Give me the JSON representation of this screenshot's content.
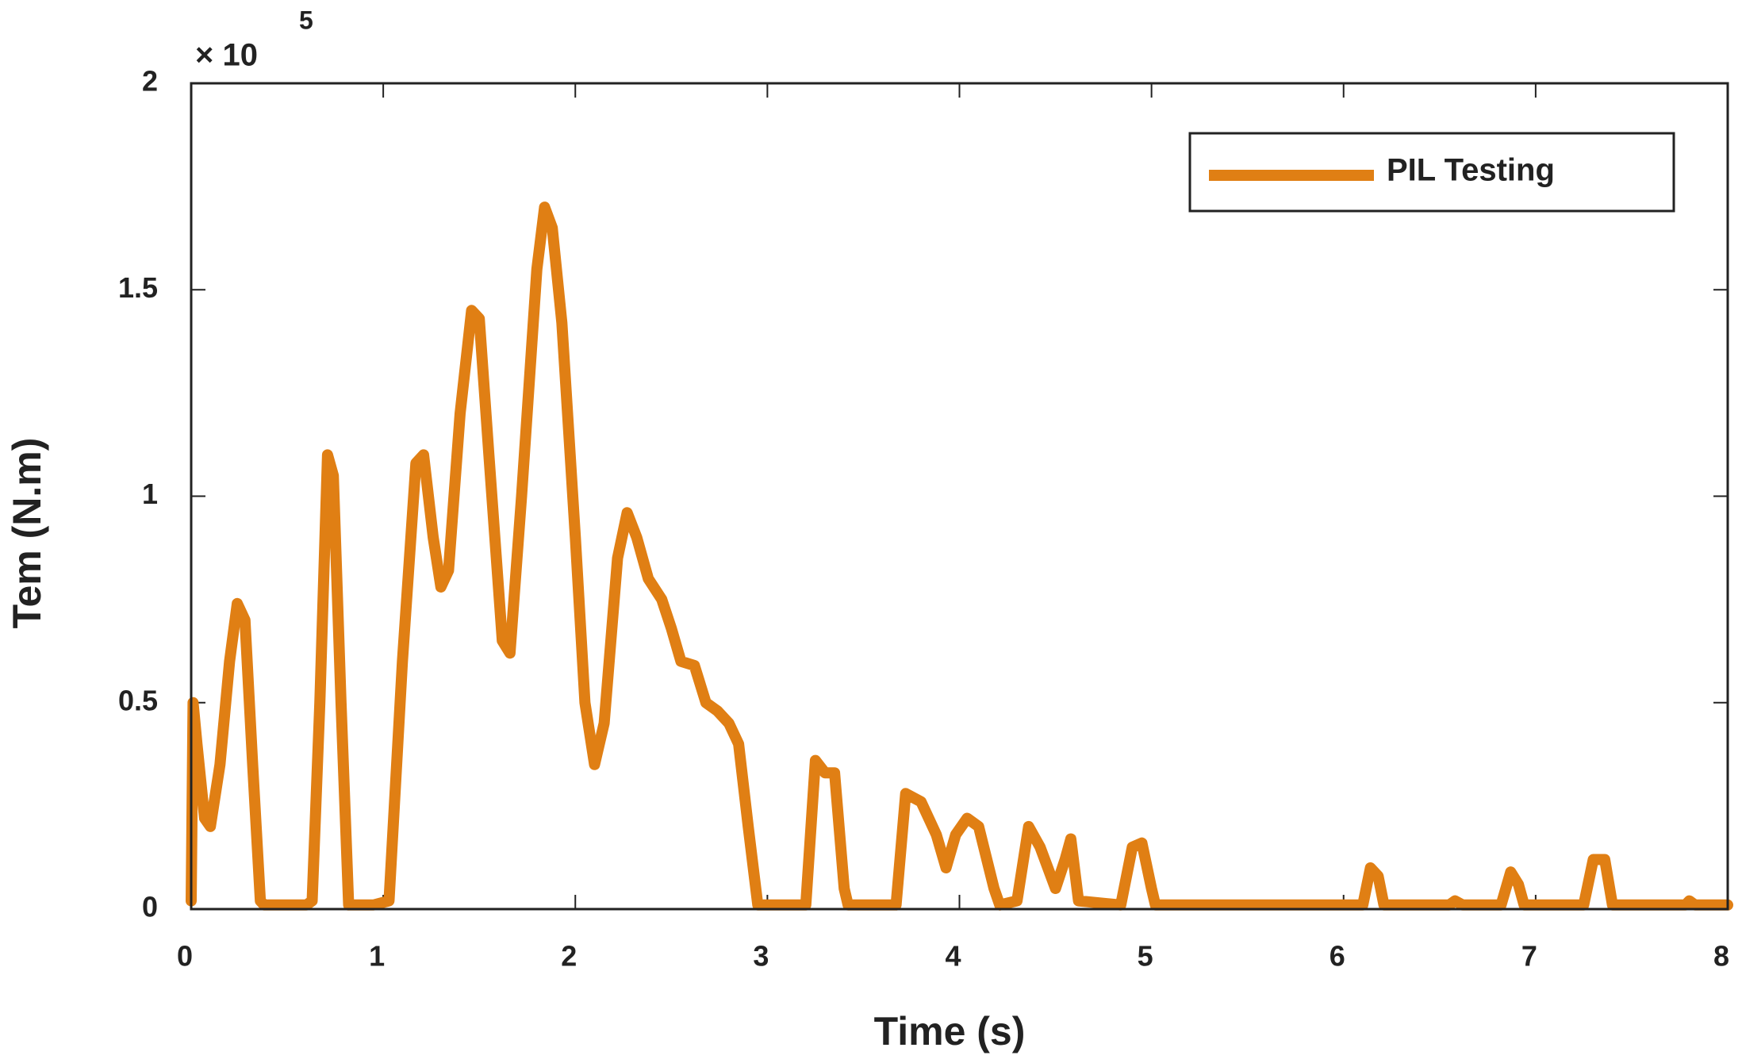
{
  "chart_data": {
    "type": "line",
    "x_label": "Time (s)",
    "y_label": "Tem (N.m)",
    "y_multiplier": {
      "base": "× 10",
      "exponent": "5"
    },
    "xlim": [
      0,
      8
    ],
    "xticks": [
      0,
      1,
      2,
      3,
      4,
      5,
      6,
      7,
      8
    ],
    "ylim": [
      0,
      2
    ],
    "yticks": [
      0,
      0.5,
      1,
      1.5,
      2
    ],
    "legend_loc": "upper right",
    "x": [
      0,
      0.01,
      0.03,
      0.07,
      0.1,
      0.15,
      0.2,
      0.24,
      0.28,
      0.32,
      0.36,
      0.38,
      0.45,
      0.5,
      0.55,
      0.6,
      0.63,
      0.67,
      0.71,
      0.74,
      0.78,
      0.82,
      0.95,
      1.03,
      1.1,
      1.17,
      1.21,
      1.26,
      1.3,
      1.34,
      1.4,
      1.46,
      1.5,
      1.55,
      1.62,
      1.66,
      1.72,
      1.8,
      1.84,
      1.88,
      1.93,
      2.0,
      2.05,
      2.1,
      2.15,
      2.22,
      2.27,
      2.32,
      2.38,
      2.45,
      2.5,
      2.55,
      2.62,
      2.68,
      2.74,
      2.8,
      2.85,
      2.9,
      2.95,
      3.2,
      3.25,
      3.3,
      3.35,
      3.4,
      3.42,
      3.67,
      3.72,
      3.8,
      3.88,
      3.93,
      3.98,
      4.04,
      4.1,
      4.18,
      4.21,
      4.3,
      4.36,
      4.42,
      4.5,
      4.55,
      4.58,
      4.62,
      4.84,
      4.9,
      4.95,
      5.0,
      5.02,
      6.1,
      6.14,
      6.18,
      6.21,
      6.55,
      6.58,
      6.62,
      6.82,
      6.87,
      6.91,
      6.94,
      7.25,
      7.3,
      7.36,
      7.4,
      7.78,
      7.8,
      7.83,
      8
    ],
    "series": [
      {
        "name": "PIL Testing",
        "color": "#e07f14",
        "values": [
          0.02,
          0.5,
          0.4,
          0.22,
          0.2,
          0.35,
          0.6,
          0.74,
          0.7,
          0.35,
          0.02,
          0.01,
          0.01,
          0.01,
          0.01,
          0.01,
          0.02,
          0.5,
          1.1,
          1.05,
          0.5,
          0.01,
          0.01,
          0.02,
          0.6,
          1.08,
          1.1,
          0.9,
          0.78,
          0.82,
          1.2,
          1.45,
          1.43,
          1.1,
          0.65,
          0.62,
          1.0,
          1.55,
          1.7,
          1.65,
          1.42,
          0.9,
          0.5,
          0.35,
          0.45,
          0.85,
          0.96,
          0.9,
          0.8,
          0.75,
          0.68,
          0.6,
          0.59,
          0.5,
          0.48,
          0.45,
          0.4,
          0.2,
          0.01,
          0.01,
          0.36,
          0.33,
          0.33,
          0.05,
          0.01,
          0.01,
          0.28,
          0.26,
          0.18,
          0.1,
          0.18,
          0.22,
          0.2,
          0.05,
          0.01,
          0.02,
          0.2,
          0.15,
          0.05,
          0.12,
          0.17,
          0.02,
          0.01,
          0.15,
          0.16,
          0.05,
          0.01,
          0.01,
          0.1,
          0.08,
          0.01,
          0.01,
          0.02,
          0.01,
          0.01,
          0.09,
          0.06,
          0.01,
          0.01,
          0.12,
          0.12,
          0.01,
          0.01,
          0.02,
          0.01,
          0.01
        ]
      }
    ]
  }
}
